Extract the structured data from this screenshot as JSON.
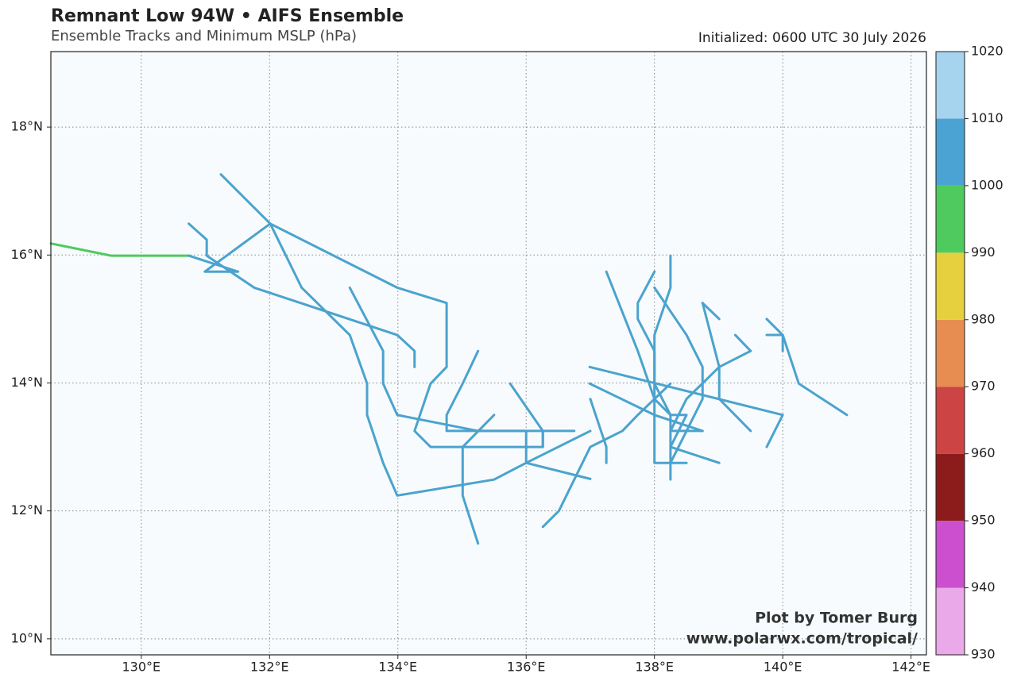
{
  "chart_data": {
    "type": "tracks",
    "title": "Remnant Low 94W • AIFS Ensemble",
    "subtitle": "Ensemble Tracks and Minimum MSLP (hPa)",
    "initialized": "Initialized: 0600 UTC 30 July 2026",
    "credit": "Plot by Tomer Burg",
    "credit_url": "www.polarwx.com/tropical/",
    "xlim": [
      128.59,
      142.24
    ],
    "ylim": [
      9.75,
      19.18
    ],
    "xticks": [
      {
        "value": 130,
        "label": "130°E"
      },
      {
        "value": 132,
        "label": "132°E"
      },
      {
        "value": 134,
        "label": "134°E"
      },
      {
        "value": 136,
        "label": "136°E"
      },
      {
        "value": 138,
        "label": "138°E"
      },
      {
        "value": 140,
        "label": "140°E"
      },
      {
        "value": 142,
        "label": "142°E"
      }
    ],
    "yticks": [
      {
        "value": 10,
        "label": "10°N"
      },
      {
        "value": 12,
        "label": "12°N"
      },
      {
        "value": 14,
        "label": "14°N"
      },
      {
        "value": 16,
        "label": "16°N"
      },
      {
        "value": 18,
        "label": "18°N"
      }
    ],
    "grid": true,
    "colorbar": {
      "levels": [
        930,
        940,
        950,
        960,
        970,
        980,
        990,
        1000,
        1010,
        1020
      ],
      "colors": [
        "#eaa9e8",
        "#cb4fcf",
        "#8c1c1c",
        "#cd4444",
        "#e88d52",
        "#e6d03e",
        "#4fca5f",
        "#4aa3d2",
        "#a6d4ee"
      ]
    },
    "series": [
      {
        "color": "#4fca5f",
        "lon": [
          128.59,
          129.53,
          130.74
        ],
        "lat": [
          16.18,
          15.99,
          15.99
        ]
      },
      {
        "color": "#4ba3cd",
        "lon": [
          130.74,
          131.51,
          130.99,
          132.01,
          132.5,
          133.25,
          133.52,
          133.52,
          133.77,
          133.99,
          135.5,
          136.0,
          137.0
        ],
        "lat": [
          15.99,
          15.74,
          15.74,
          16.49,
          15.49,
          14.75,
          13.99,
          13.5,
          12.75,
          12.24,
          12.49,
          12.75,
          13.25
        ]
      },
      {
        "color": "#4ba3cd",
        "lon": [
          131.24,
          132.01,
          133.99,
          134.76,
          134.76,
          134.51,
          134.26,
          134.51,
          136.26,
          136.26
        ],
        "lat": [
          17.26,
          16.49,
          15.49,
          15.25,
          14.25,
          13.99,
          13.25,
          13.0,
          13.0,
          13.25
        ]
      },
      {
        "color": "#4ba3cd",
        "lon": [
          130.74,
          131.02,
          131.02,
          131.76,
          133.99,
          134.26,
          134.26
        ],
        "lat": [
          16.49,
          16.24,
          15.99,
          15.49,
          14.75,
          14.5,
          14.25
        ]
      },
      {
        "color": "#4ba3cd",
        "lon": [
          133.25,
          133.77,
          133.77,
          133.99,
          135.25,
          136.75
        ],
        "lat": [
          15.49,
          14.5,
          13.99,
          13.5,
          13.25,
          13.25
        ]
      },
      {
        "color": "#4ba3cd",
        "lon": [
          135.25,
          135.01,
          134.76,
          134.76,
          136.0,
          136.0,
          137.0
        ],
        "lat": [
          14.5,
          13.99,
          13.5,
          13.25,
          13.25,
          12.75,
          12.5
        ]
      },
      {
        "color": "#4ba3cd",
        "lon": [
          135.25,
          135.01,
          135.01,
          135.5
        ],
        "lat": [
          11.49,
          12.24,
          13.0,
          13.5
        ]
      },
      {
        "color": "#4ba3cd",
        "lon": [
          135.75,
          136.26,
          136.26
        ],
        "lat": [
          13.99,
          13.25,
          13.0
        ]
      },
      {
        "color": "#4ba3cd",
        "lon": [
          136.26,
          136.51,
          136.75,
          137.0,
          137.5,
          137.74,
          138.25
        ],
        "lat": [
          11.75,
          12.0,
          12.49,
          13.0,
          13.25,
          13.5,
          13.99
        ]
      },
      {
        "color": "#4ba3cd",
        "lon": [
          137.25,
          137.74,
          138.0,
          138.25,
          138.5,
          138.25,
          139.01
        ],
        "lat": [
          15.74,
          14.5,
          13.75,
          13.5,
          13.5,
          13.0,
          12.75
        ]
      },
      {
        "color": "#4ba3cd",
        "lon": [
          138.0,
          137.74,
          137.74,
          138.0,
          138.0,
          138.5
        ],
        "lat": [
          15.74,
          15.25,
          15.0,
          14.5,
          12.75,
          12.75
        ]
      },
      {
        "color": "#4ba3cd",
        "lon": [
          138.25,
          138.25,
          138.0,
          138.0,
          138.25,
          138.25
        ],
        "lat": [
          15.99,
          15.49,
          14.75,
          13.99,
          13.5,
          12.49
        ]
      },
      {
        "color": "#4ba3cd",
        "lon": [
          138.0,
          138.5,
          138.75,
          138.75,
          138.5,
          138.25
        ],
        "lat": [
          15.49,
          14.75,
          14.25,
          13.75,
          13.25,
          12.75
        ]
      },
      {
        "color": "#4ba3cd",
        "lon": [
          138.75,
          139.01,
          139.01,
          139.5
        ],
        "lat": [
          15.25,
          14.25,
          13.75,
          13.25
        ]
      },
      {
        "color": "#4ba3cd",
        "lon": [
          138.75,
          139.01
        ],
        "lat": [
          15.25,
          15.0
        ]
      },
      {
        "color": "#4ba3cd",
        "lon": [
          136.99,
          140.0,
          139.75
        ],
        "lat": [
          14.25,
          13.5,
          13.0
        ]
      },
      {
        "color": "#4ba3cd",
        "lon": [
          139.5,
          139.01,
          138.5,
          138.25,
          138.75
        ],
        "lat": [
          14.5,
          14.25,
          13.75,
          13.25,
          13.25
        ]
      },
      {
        "color": "#4ba3cd",
        "lon": [
          139.75,
          140.0,
          140.0
        ],
        "lat": [
          15.0,
          14.75,
          14.5
        ]
      },
      {
        "color": "#4ba3cd",
        "lon": [
          139.75,
          140.0,
          140.25,
          141.0
        ],
        "lat": [
          14.75,
          14.75,
          13.99,
          13.5
        ]
      },
      {
        "color": "#4ba3cd",
        "lon": [
          136.99,
          138.0,
          138.75
        ],
        "lat": [
          13.99,
          13.5,
          13.25
        ]
      },
      {
        "color": "#4ba3cd",
        "lon": [
          137.0,
          137.25,
          137.25
        ],
        "lat": [
          13.75,
          13.0,
          12.75
        ]
      },
      {
        "color": "#4ba3cd",
        "lon": [
          139.26,
          139.5
        ],
        "lat": [
          14.75,
          14.5
        ]
      }
    ]
  }
}
